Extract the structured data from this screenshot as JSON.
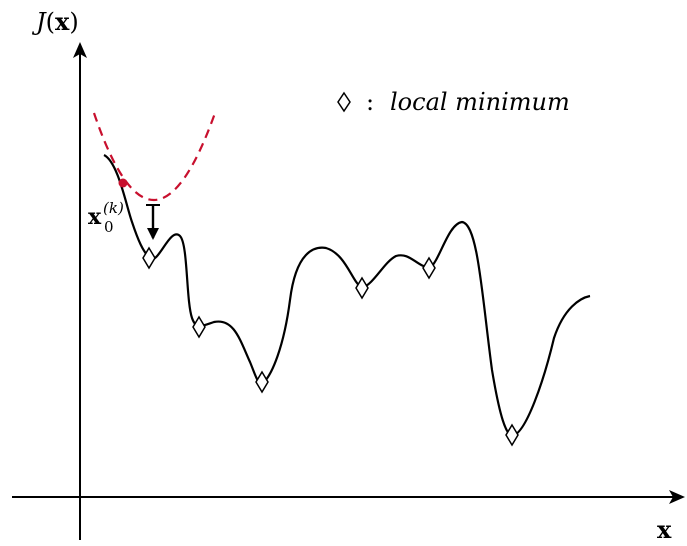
{
  "axes": {
    "y_label_func": "J",
    "y_label_arg": "x",
    "x_label": "x"
  },
  "legend": {
    "colon": ":",
    "text": "local minimum"
  },
  "start_point": {
    "base": "x",
    "subscript": "0",
    "superscript": "(k)"
  },
  "colors": {
    "curve": "#000000",
    "surrogate": "#c8102e",
    "start_point": "#c8102e"
  },
  "local_minima_count": 7
}
